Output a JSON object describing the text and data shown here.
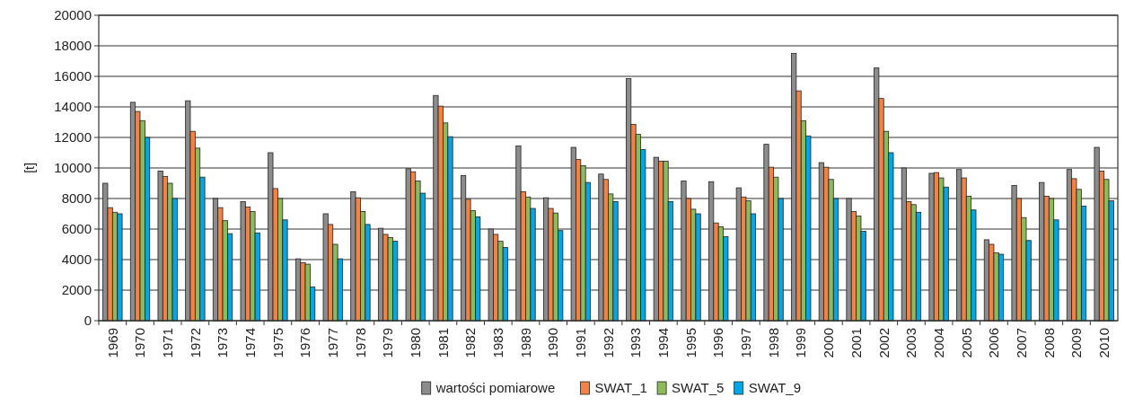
{
  "chart_data": {
    "type": "bar",
    "ylabel": "[t]",
    "categories": [
      "1969",
      "1970",
      "1971",
      "1972",
      "1973",
      "1974",
      "1975",
      "1976",
      "1977",
      "1978",
      "1979",
      "1980",
      "1981",
      "1982",
      "1983",
      "1989",
      "1990",
      "1991",
      "1992",
      "1993",
      "1994",
      "1995",
      "1996",
      "1997",
      "1998",
      "1999",
      "2000",
      "2001",
      "2002",
      "2003",
      "2004",
      "2005",
      "2006",
      "2007",
      "2008",
      "2009",
      "2010"
    ],
    "series": [
      {
        "name": "wartości pomiarowe",
        "color": "#8c8c8c",
        "values": [
          9000,
          14300,
          9800,
          14400,
          8000,
          7800,
          11000,
          4050,
          7000,
          8450,
          6050,
          9950,
          14750,
          9500,
          6000,
          11450,
          8050,
          11350,
          9600,
          15850,
          10700,
          9150,
          9100,
          8700,
          11550,
          17500,
          10350,
          8000,
          16550,
          10000,
          9650,
          9900,
          5300,
          8850,
          9050,
          9900,
          11350
        ]
      },
      {
        "name": "SWAT_1",
        "color": "#f58142",
        "values": [
          7400,
          13700,
          9450,
          12400,
          7400,
          7450,
          8650,
          3800,
          6300,
          8050,
          5650,
          9750,
          14050,
          7950,
          5650,
          8450,
          7350,
          10550,
          9250,
          12850,
          10450,
          8000,
          6400,
          8100,
          10050,
          15050,
          10050,
          7150,
          14550,
          7800,
          9700,
          9350,
          5000,
          8000,
          8150,
          9300,
          9800
        ]
      },
      {
        "name": "SWAT_5",
        "color": "#8cbb5a",
        "values": [
          7100,
          13100,
          9000,
          11300,
          6550,
          7150,
          8000,
          3700,
          5000,
          7150,
          5450,
          9150,
          12950,
          7200,
          5200,
          8100,
          7050,
          10150,
          8300,
          12200,
          10450,
          7300,
          6150,
          7850,
          9400,
          13100,
          9250,
          6850,
          12400,
          7600,
          9350,
          8150,
          4450,
          6750,
          8000,
          8600,
          9250
        ]
      },
      {
        "name": "SWAT_9",
        "color": "#00a6e6",
        "values": [
          7000,
          12000,
          8000,
          9400,
          5700,
          5750,
          6600,
          2200,
          4050,
          6300,
          5200,
          8350,
          12050,
          6800,
          4800,
          7350,
          5900,
          9050,
          7800,
          11200,
          7800,
          7000,
          5500,
          7000,
          8000,
          12100,
          8000,
          5850,
          11000,
          7100,
          8750,
          7250,
          4350,
          5250,
          6600,
          7500,
          7850
        ]
      }
    ],
    "ylim": [
      0,
      20000
    ],
    "yticks": [
      0,
      2000,
      4000,
      6000,
      8000,
      10000,
      12000,
      14000,
      16000,
      18000,
      20000
    ],
    "grid": "y",
    "legend": "bottom"
  }
}
